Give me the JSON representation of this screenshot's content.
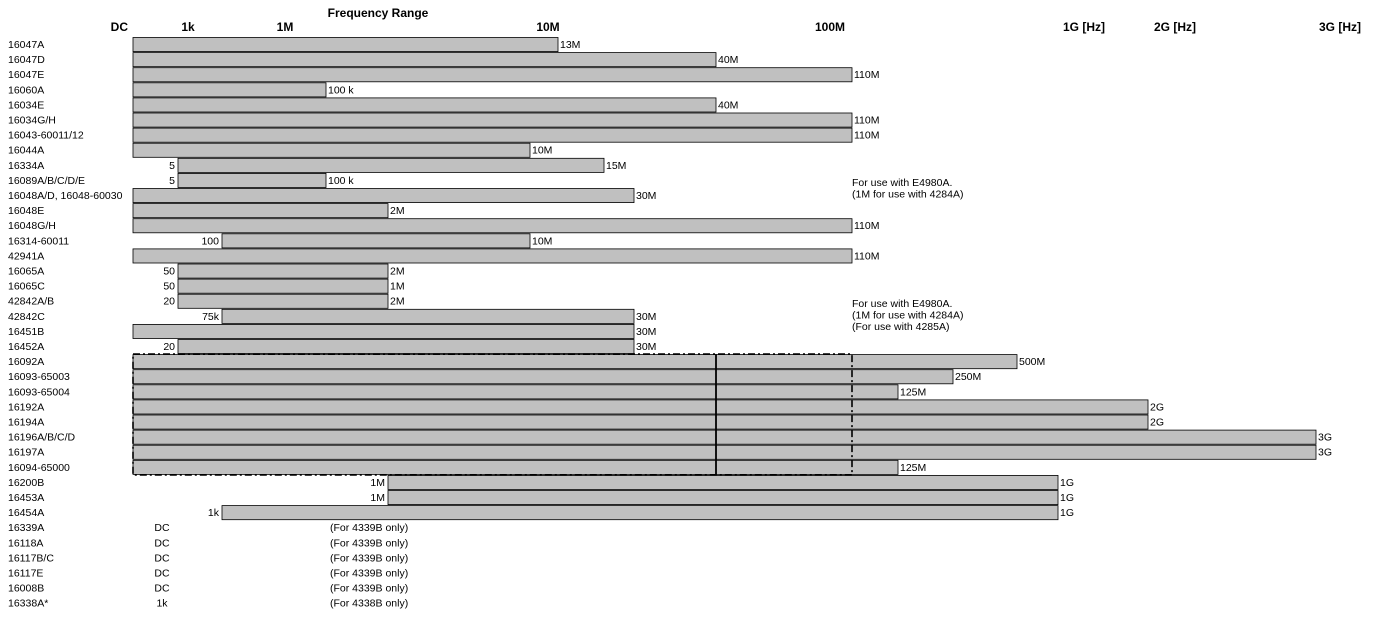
{
  "chart_data": {
    "type": "bar",
    "title": "Frequency Range",
    "axis_ticks": [
      {
        "label": "DC",
        "key": "dc"
      },
      {
        "label": "1k",
        "key": "1k"
      },
      {
        "label": "1M",
        "key": "1M"
      },
      {
        "label": "10M",
        "key": "10M"
      },
      {
        "label": "100M",
        "key": "100M"
      },
      {
        "label": "1G [Hz]",
        "key": "1G"
      },
      {
        "label": "2G [Hz]",
        "key": "2G"
      },
      {
        "label": "3G [Hz]",
        "key": "3G"
      }
    ],
    "rows": [
      {
        "name": "16047A",
        "start": "dc",
        "end": "13M",
        "start_label": "",
        "end_label": "13M"
      },
      {
        "name": "16047D",
        "start": "dc",
        "end": "40M",
        "start_label": "",
        "end_label": "40M"
      },
      {
        "name": "16047E",
        "start": "dc",
        "end": "110M",
        "start_label": "",
        "end_label": "110M"
      },
      {
        "name": "16060A",
        "start": "dc",
        "end": "100k",
        "start_label": "",
        "end_label": "100 k"
      },
      {
        "name": "16034E",
        "start": "dc",
        "end": "40M",
        "start_label": "",
        "end_label": "40M"
      },
      {
        "name": "16034G/H",
        "start": "dc",
        "end": "110M",
        "start_label": "",
        "end_label": "110M"
      },
      {
        "name": "16043-60011/12",
        "start": "dc",
        "end": "110M",
        "start_label": "",
        "end_label": "110M"
      },
      {
        "name": "16044A",
        "start": "dc",
        "end": "10M",
        "start_label": "",
        "end_label": "10M"
      },
      {
        "name": "16334A",
        "start": "5",
        "end": "15M",
        "start_label": "5",
        "end_label": "15M"
      },
      {
        "name": "16089A/B/C/D/E",
        "start": "5",
        "end": "100k",
        "start_label": "5",
        "end_label": "100 k"
      },
      {
        "name": "16048A/D, 16048-60030",
        "start": "dc",
        "end": "30M",
        "start_label": "",
        "end_label": "30M"
      },
      {
        "name": "16048E",
        "start": "dc",
        "end": "2M",
        "start_label": "",
        "end_label": "2M"
      },
      {
        "name": "16048G/H",
        "start": "dc",
        "end": "110M",
        "start_label": "",
        "end_label": "110M"
      },
      {
        "name": "16314-60011",
        "start": "100",
        "end": "10M",
        "start_label": "100",
        "end_label": "10M"
      },
      {
        "name": "42941A",
        "start": "dc",
        "end": "110M",
        "start_label": "",
        "end_label": "110M"
      },
      {
        "name": "16065A",
        "start": "50",
        "end": "2M",
        "start_label": "50",
        "end_label": "2M"
      },
      {
        "name": "16065C",
        "start": "50",
        "end": "1M",
        "start_label": "50",
        "end_label": "1M"
      },
      {
        "name": "42842A/B",
        "start": "20",
        "end": "2M",
        "start_label": "20",
        "end_label": "2M"
      },
      {
        "name": "42842C",
        "start": "75k",
        "end": "30M",
        "start_label": "75k",
        "end_label": "30M"
      },
      {
        "name": "16451B",
        "start": "dc",
        "end": "30M",
        "start_label": "",
        "end_label": "30M"
      },
      {
        "name": "16452A",
        "start": "20",
        "end": "30M",
        "start_label": "20",
        "end_label": "30M"
      },
      {
        "name": "16092A",
        "start": "dc",
        "end": "500M",
        "start_label": "",
        "end_label": "500M"
      },
      {
        "name": "16093-65003",
        "start": "dc",
        "end": "250M",
        "start_label": "",
        "end_label": "250M"
      },
      {
        "name": "16093-65004",
        "start": "dc",
        "end": "125M",
        "start_label": "",
        "end_label": "125M"
      },
      {
        "name": "16192A",
        "start": "dc",
        "end": "2G",
        "start_label": "",
        "end_label": "2G"
      },
      {
        "name": "16194A",
        "start": "dc",
        "end": "2G",
        "start_label": "",
        "end_label": "2G"
      },
      {
        "name": "16196A/B/C/D",
        "start": "dc",
        "end": "3G",
        "start_label": "",
        "end_label": "3G"
      },
      {
        "name": "16197A",
        "start": "dc",
        "end": "3G",
        "start_label": "",
        "end_label": "3G"
      },
      {
        "name": "16094-65000",
        "start": "dc",
        "end": "125M",
        "start_label": "",
        "end_label": "125M"
      },
      {
        "name": "16200B",
        "start": "1M",
        "end": "1G",
        "start_label": "1M",
        "end_label": "1G"
      },
      {
        "name": "16453A",
        "start": "1M",
        "end": "1G",
        "start_label": "1M",
        "end_label": "1G"
      },
      {
        "name": "16454A",
        "start": "1k",
        "end": "1G",
        "start_label": "1k",
        "end_label": "1G"
      },
      {
        "name": "16339A",
        "start": null,
        "end": null,
        "start_label": "DC",
        "end_label": "",
        "note": "(For 4339B only)"
      },
      {
        "name": "16118A",
        "start": null,
        "end": null,
        "start_label": "DC",
        "end_label": "",
        "note": "(For 4339B only)"
      },
      {
        "name": "16117B/C",
        "start": null,
        "end": null,
        "start_label": "DC",
        "end_label": "",
        "note": "(For 4339B only)"
      },
      {
        "name": " 16117E",
        "start": null,
        "end": null,
        "start_label": "DC",
        "end_label": "",
        "note": "(For 4339B only)"
      },
      {
        "name": "16008B",
        "start": null,
        "end": null,
        "start_label": "DC",
        "end_label": "",
        "note": "(For 4339B only)"
      },
      {
        "name": "16338A*",
        "start": null,
        "end": null,
        "start_label": "1k",
        "end_label": "",
        "note": "(For 4338B only)"
      }
    ],
    "side_notes": [
      {
        "row": 10,
        "lines": [
          "For use with E4980A.",
          "(1M for use with 4284A)"
        ]
      },
      {
        "row": 18,
        "lines": [
          "For use with E4980A.",
          "(1M for use with 4284A)",
          "(For use with 4285A)"
        ]
      }
    ],
    "highlight_group": {
      "first_row": 21,
      "last_row": 28,
      "style": "dash-dot box",
      "divider_at": "40M",
      "box_end": "110M"
    }
  }
}
